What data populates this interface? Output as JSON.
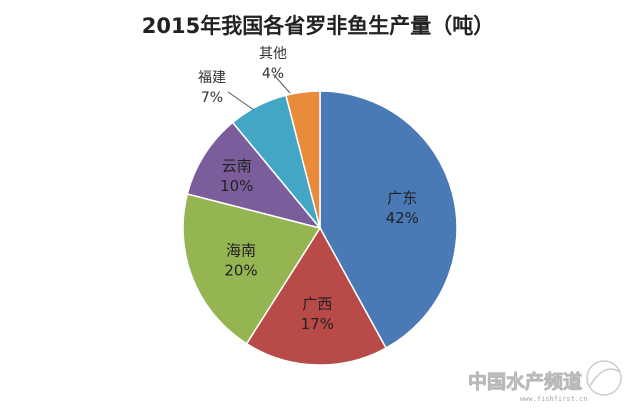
{
  "chart_data": {
    "type": "pie",
    "title": "2015年我国各省罗非鱼生产量（吨）",
    "slices": [
      {
        "label": "广东",
        "value": 42,
        "value_label": "42%",
        "color": "#4a7ab5"
      },
      {
        "label": "广西",
        "value": 17,
        "value_label": "17%",
        "color": "#b84a47"
      },
      {
        "label": "海南",
        "value": 20,
        "value_label": "20%",
        "color": "#95b452"
      },
      {
        "label": "云南",
        "value": 10,
        "value_label": "10%",
        "color": "#7b5d9c"
      },
      {
        "label": "福建",
        "value": 7,
        "value_label": "7%",
        "color": "#42a6c4"
      },
      {
        "label": "其他",
        "value": 4,
        "value_label": "4%",
        "color": "#e88b3a"
      }
    ],
    "start_angle_deg": 0,
    "direction": "clockwise",
    "legend": "none"
  },
  "watermark": {
    "text": "中国水产频道",
    "url": "www.fishfirst.cn"
  }
}
